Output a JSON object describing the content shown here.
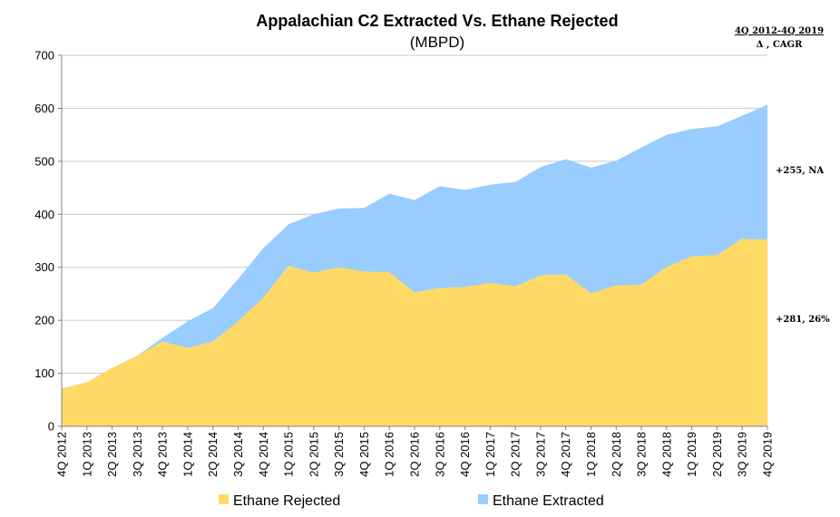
{
  "chart_data": {
    "type": "area",
    "title": "Appalachian C2 Extracted Vs. Ethane Rejected",
    "subtitle": "(MBPD)",
    "ylim": [
      0,
      700
    ],
    "yticks": [
      0,
      100,
      200,
      300,
      400,
      500,
      600,
      700
    ],
    "grid": true,
    "stacked": true,
    "categories": [
      "4Q 2012",
      "1Q 2013",
      "2Q 2013",
      "3Q 2013",
      "4Q 2013",
      "1Q 2014",
      "2Q 2014",
      "3Q 2014",
      "4Q 2014",
      "1Q 2015",
      "2Q 2015",
      "3Q 2015",
      "4Q 2015",
      "1Q 2016",
      "2Q 2016",
      "3Q 2016",
      "4Q 2016",
      "1Q 2017",
      "2Q 2017",
      "3Q 2017",
      "4Q 2017",
      "1Q 2018",
      "2Q 2018",
      "3Q 2018",
      "4Q 2018",
      "1Q 2019",
      "2Q 2019",
      "3Q 2019",
      "4Q 2019"
    ],
    "series": [
      {
        "name": "Ethane Rejected",
        "color": "#FFD966",
        "values": [
          71,
          83,
          110,
          133,
          160,
          148,
          160,
          198,
          243,
          303,
          290,
          300,
          292,
          291,
          253,
          261,
          263,
          271,
          264,
          285,
          287,
          251,
          266,
          267,
          301,
          321,
          323,
          354,
          352
        ]
      },
      {
        "name": "Ethane Extracted",
        "color": "#99CCFF",
        "values": [
          0,
          0,
          0,
          0,
          7,
          50,
          63,
          80,
          93,
          78,
          110,
          111,
          120,
          148,
          174,
          192,
          183,
          185,
          197,
          204,
          217,
          237,
          235,
          259,
          249,
          240,
          243,
          232,
          255
        ]
      }
    ],
    "legend_position": "bottom",
    "side_header": {
      "line1": "4Q 2012-4Q 2019",
      "line2": "Δ , CAGR"
    },
    "annotations": [
      {
        "text": "+255, NA",
        "series": "Ethane Extracted"
      },
      {
        "text": "+281, 26%",
        "series": "Ethane Rejected"
      }
    ]
  }
}
